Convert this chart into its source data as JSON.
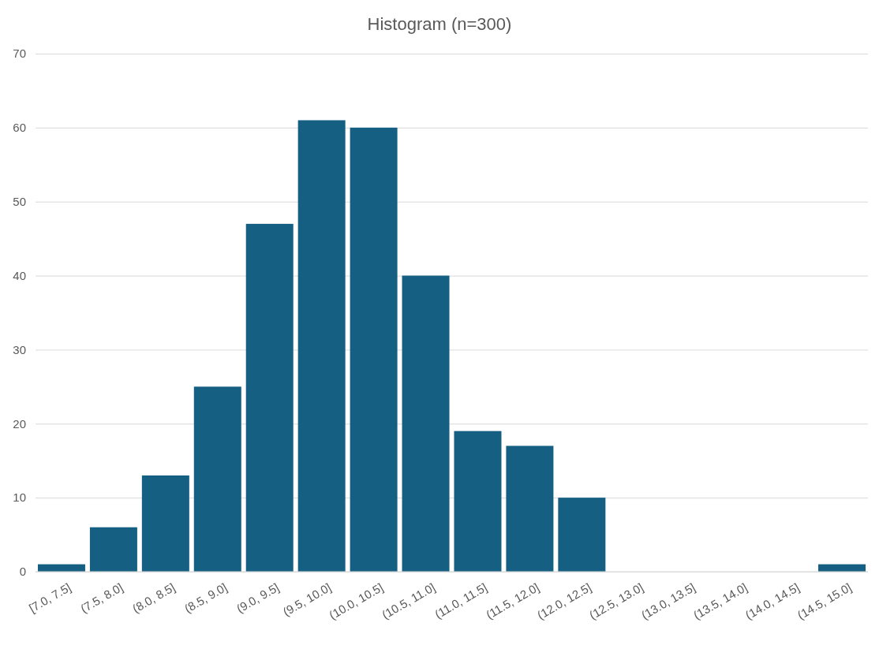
{
  "chart_data": {
    "type": "bar",
    "title": "Histogram (n=300)",
    "categories": [
      "[7.0, 7.5]",
      "(7.5, 8.0]",
      "(8.0, 8.5]",
      "(8.5, 9.0]",
      "(9.0, 9.5]",
      "(9.5, 10.0]",
      "(10.0, 10.5]",
      "(10.5, 11.0]",
      "(11.0, 11.5]",
      "(11.5, 12.0]",
      "(12.0, 12.5]",
      "(12.5, 13.0]",
      "(13.0, 13.5]",
      "(13.5, 14.0]",
      "(14.0, 14.5]",
      "(14.5, 15.0]"
    ],
    "values": [
      1,
      6,
      13,
      25,
      47,
      61,
      60,
      40,
      19,
      17,
      10,
      0,
      0,
      0,
      0,
      1
    ],
    "color": "#156082",
    "ylim": [
      0,
      70
    ],
    "yticks": [
      0,
      10,
      20,
      30,
      40,
      50,
      60,
      70
    ],
    "grid": "y"
  }
}
